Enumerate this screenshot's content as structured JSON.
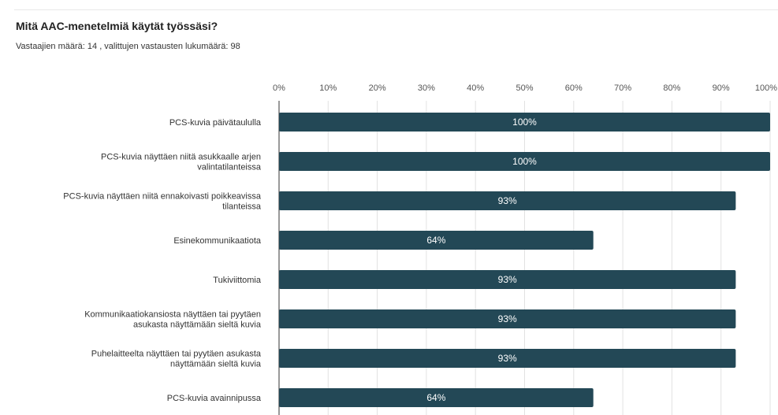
{
  "header": {
    "title": "Mitä AAC-menetelmiä käytät työssäsi?",
    "respondents": "Vastaajien määrä: 14 , valittujen vastausten lukumäärä: 98"
  },
  "colors": {
    "bar": "#234856",
    "grid": "#e2e2e2",
    "axis": "#333333"
  },
  "chart_data": {
    "type": "bar",
    "orientation": "horizontal",
    "title": "Mitä AAC-menetelmiä käytät työssäsi?",
    "subtitle": "Vastaajien määrä: 14 , valittujen vastausten lukumäärä: 98",
    "xlabel": "",
    "ylabel": "",
    "xlim": [
      0,
      100
    ],
    "ticks": [
      "0%",
      "10%",
      "20%",
      "30%",
      "40%",
      "50%",
      "60%",
      "70%",
      "80%",
      "90%",
      "100%"
    ],
    "tick_values": [
      0,
      10,
      20,
      30,
      40,
      50,
      60,
      70,
      80,
      90,
      100
    ],
    "grid": true,
    "tick_position": "top",
    "categories": [
      [
        "PCS-kuvia päivätaululla"
      ],
      [
        "PCS-kuvia näyttäen niitä asukkaalle arjen",
        "valintatilanteissa"
      ],
      [
        "PCS-kuvia näyttäen niitä ennakoivasti poikkeavissa",
        "tilanteissa"
      ],
      [
        "Esinekommunikaatiota"
      ],
      [
        "Tukiviittomia"
      ],
      [
        "Kommunikaatiokansiosta näyttäen tai pyytäen",
        "asukasta näyttämään sieltä kuvia"
      ],
      [
        "Puhelaitteelta näyttäen tai pyytäen asukasta",
        "näyttämään sieltä kuvia"
      ],
      [
        "PCS-kuvia avainnipussa"
      ]
    ],
    "values": [
      100,
      100,
      93,
      64,
      93,
      93,
      93,
      64
    ],
    "value_labels": [
      "100%",
      "100%",
      "93%",
      "64%",
      "93%",
      "93%",
      "93%",
      "64%"
    ]
  }
}
